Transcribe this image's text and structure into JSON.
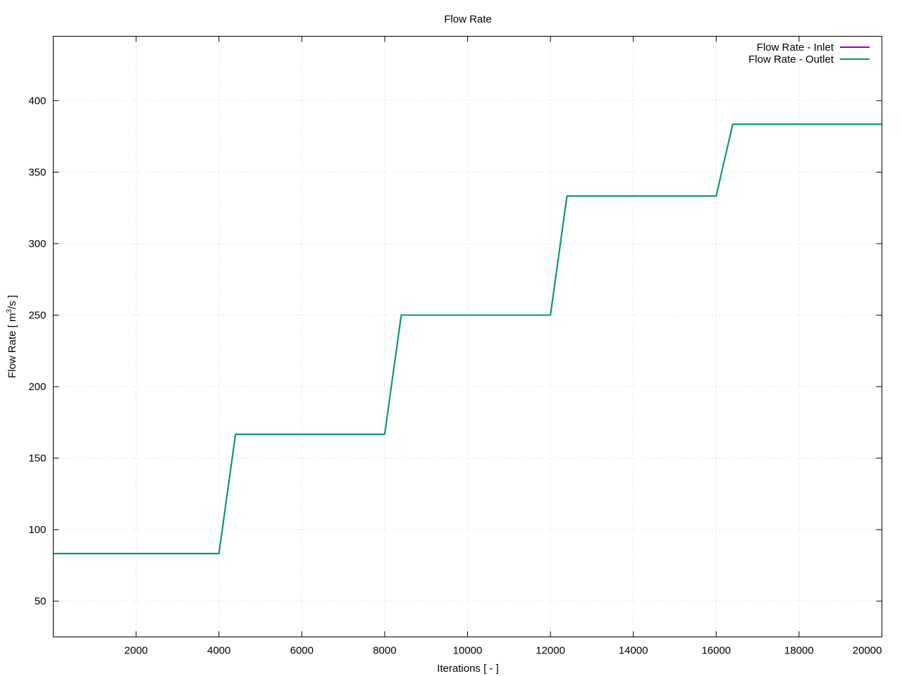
{
  "chart_data": {
    "type": "line",
    "title": "Flow Rate",
    "xlabel": "Iterations [ - ]",
    "ylabel_main": "Flow Rate [ m",
    "ylabel_sup": "3",
    "ylabel_end": "/s ]",
    "xlim": [
      0,
      20000
    ],
    "ylim": [
      25,
      445
    ],
    "xticks": [
      2000,
      4000,
      6000,
      8000,
      10000,
      12000,
      14000,
      16000,
      18000,
      20000
    ],
    "yticks": [
      50,
      100,
      150,
      200,
      250,
      300,
      350,
      400
    ],
    "grid": true,
    "legend_position": "top-right",
    "series": [
      {
        "name": "Flow Rate - Inlet",
        "color": "#9400d3",
        "points": [
          [
            0,
            83.3
          ],
          [
            4000,
            83.3
          ],
          [
            4400,
            166.7
          ],
          [
            8000,
            166.7
          ],
          [
            8400,
            250.0
          ],
          [
            12000,
            250.0
          ],
          [
            12400,
            333.3
          ],
          [
            16000,
            333.3
          ],
          [
            16400,
            383.5
          ],
          [
            20000,
            383.5
          ]
        ]
      },
      {
        "name": "Flow Rate - Outlet",
        "color": "#009e73",
        "points": [
          [
            0,
            83.3
          ],
          [
            4000,
            83.3
          ],
          [
            4400,
            166.7
          ],
          [
            8000,
            166.7
          ],
          [
            8400,
            250.0
          ],
          [
            12000,
            250.0
          ],
          [
            12400,
            333.3
          ],
          [
            16000,
            333.3
          ],
          [
            16400,
            383.5
          ],
          [
            20000,
            383.5
          ]
        ]
      }
    ]
  }
}
